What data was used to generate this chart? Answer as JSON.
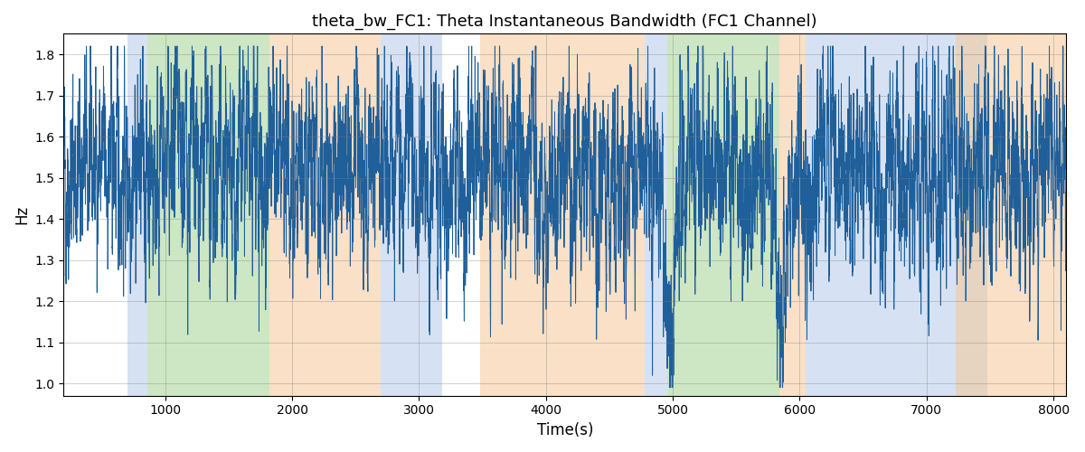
{
  "title": "theta_bw_FC1: Theta Instantaneous Bandwidth (FC1 Channel)",
  "xlabel": "Time(s)",
  "ylabel": "Hz",
  "xlim": [
    200,
    8100
  ],
  "ylim": [
    0.97,
    1.85
  ],
  "yticks": [
    1.0,
    1.1,
    1.2,
    1.3,
    1.4,
    1.5,
    1.6,
    1.7,
    1.8
  ],
  "xticks": [
    1000,
    2000,
    3000,
    4000,
    5000,
    6000,
    7000,
    8000
  ],
  "line_color": "#1f5f9a",
  "bg_color": "#ffffff",
  "seed": 42,
  "colored_regions": [
    {
      "xmin": 700,
      "xmax": 860,
      "color": "#aec6e8",
      "alpha": 0.5
    },
    {
      "xmin": 860,
      "xmax": 1820,
      "color": "#90c97a",
      "alpha": 0.45
    },
    {
      "xmin": 1820,
      "xmax": 2700,
      "color": "#f5c897",
      "alpha": 0.55
    },
    {
      "xmin": 2700,
      "xmax": 3180,
      "color": "#aec6e8",
      "alpha": 0.5
    },
    {
      "xmin": 3480,
      "xmax": 4780,
      "color": "#f5c897",
      "alpha": 0.55
    },
    {
      "xmin": 4780,
      "xmax": 4960,
      "color": "#aec6e8",
      "alpha": 0.5
    },
    {
      "xmin": 4960,
      "xmax": 5840,
      "color": "#90c97a",
      "alpha": 0.45
    },
    {
      "xmin": 5840,
      "xmax": 6050,
      "color": "#f5c897",
      "alpha": 0.55
    },
    {
      "xmin": 6050,
      "xmax": 7230,
      "color": "#aec6e8",
      "alpha": 0.5
    },
    {
      "xmin": 7230,
      "xmax": 7480,
      "color": "#aec6e8",
      "alpha": 0.5
    },
    {
      "xmin": 7230,
      "xmax": 8100,
      "color": "#f5c897",
      "alpha": 0.55
    }
  ],
  "signal_base": 1.52,
  "signal_std": 0.13,
  "ar_coeff": 0.75,
  "n_points": 7900
}
